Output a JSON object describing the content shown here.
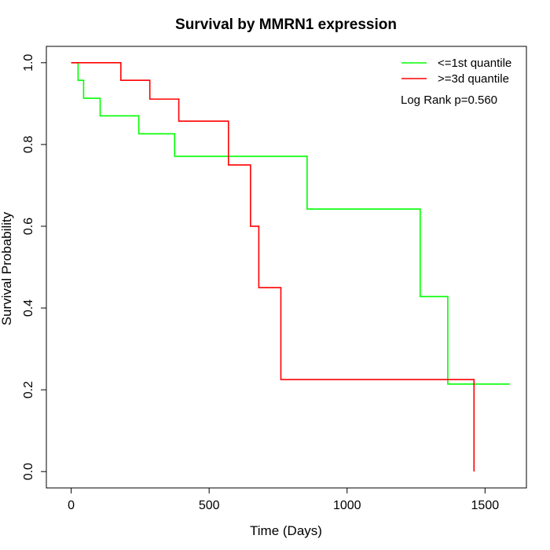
{
  "chart_data": {
    "type": "line",
    "title": "Survival by MMRN1 expression",
    "xlabel": "Time (Days)",
    "ylabel": "Survival Probability",
    "xlim": [
      -90,
      1650
    ],
    "ylim": [
      -0.04,
      1.04
    ],
    "xticks": [
      0,
      500,
      1000,
      1500
    ],
    "yticks": [
      0.0,
      0.2,
      0.4,
      0.6,
      0.8,
      1.0
    ],
    "xtick_labels": [
      "0",
      "500",
      "1000",
      "1500"
    ],
    "ytick_labels": [
      "0.0",
      "0.2",
      "0.4",
      "0.6",
      "0.8",
      "1.0"
    ],
    "grid": false,
    "legend_position": "top-right",
    "annotation": "Log Rank p=0.560",
    "series": [
      {
        "name": "<=1st quantile",
        "color": "#00ff00",
        "step": true,
        "x": [
          0,
          25,
          45,
          105,
          245,
          375,
          855,
          1265,
          1365,
          1590
        ],
        "y": [
          1.0,
          0.957,
          0.913,
          0.87,
          0.826,
          0.771,
          0.642,
          0.428,
          0.214,
          0.214
        ]
      },
      {
        "name": ">=3d quantile",
        "color": "#ff0000",
        "step": true,
        "x": [
          0,
          180,
          285,
          390,
          570,
          650,
          680,
          760,
          1460,
          1460
        ],
        "y": [
          1.0,
          0.957,
          0.911,
          0.857,
          0.75,
          0.6,
          0.45,
          0.225,
          0.225,
          0.0
        ]
      }
    ]
  }
}
